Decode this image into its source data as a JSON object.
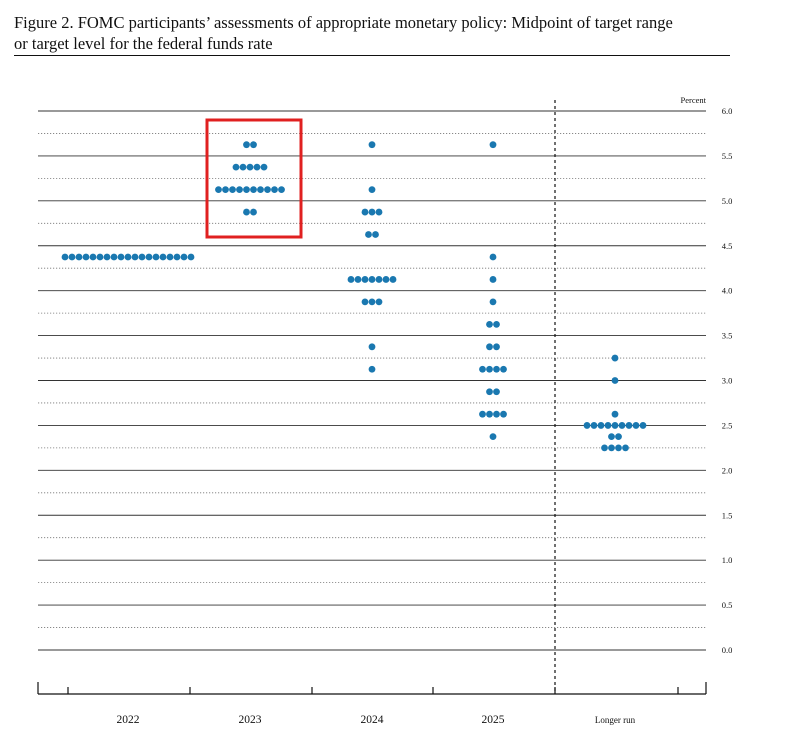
{
  "figure": {
    "title_line1": "Figure 2.  FOMC participants’ assessments of appropriate monetary policy:  Midpoint of target range",
    "title_line2": "or target level for the federal funds rate"
  },
  "chart_data": {
    "type": "scatter",
    "subtype": "dot-plot",
    "title": "Figure 2. FOMC participants’ assessments of appropriate monetary policy: Midpoint of target range or target level for the federal funds rate",
    "ylabel": "Percent",
    "ylim": [
      0.0,
      6.0
    ],
    "y_ticks": [
      "0.0",
      "0.5",
      "1.0",
      "1.5",
      "2.0",
      "2.5",
      "3.0",
      "3.5",
      "4.0",
      "4.5",
      "5.0",
      "5.5",
      "6.0"
    ],
    "y_axis_side": "right",
    "grid": "dotted, every 0.25; solid at whole and half points",
    "categories": [
      "2022",
      "2023",
      "2024",
      "2025",
      "Longer run"
    ],
    "dot_color": "#1a78b0",
    "highlight_color": "#e02020",
    "highlight_category": "2023",
    "columns": [
      {
        "category": "2022",
        "points": [
          {
            "y": 4.375,
            "count": 19
          }
        ]
      },
      {
        "category": "2023",
        "points": [
          {
            "y": 5.625,
            "count": 2
          },
          {
            "y": 5.375,
            "count": 5
          },
          {
            "y": 5.125,
            "count": 10
          },
          {
            "y": 4.875,
            "count": 2
          }
        ]
      },
      {
        "category": "2024",
        "points": [
          {
            "y": 5.625,
            "count": 1
          },
          {
            "y": 5.125,
            "count": 1
          },
          {
            "y": 4.875,
            "count": 3
          },
          {
            "y": 4.625,
            "count": 2
          },
          {
            "y": 4.125,
            "count": 7
          },
          {
            "y": 3.875,
            "count": 3
          },
          {
            "y": 3.375,
            "count": 1
          },
          {
            "y": 3.125,
            "count": 1
          }
        ]
      },
      {
        "category": "2025",
        "points": [
          {
            "y": 5.625,
            "count": 1
          },
          {
            "y": 4.375,
            "count": 1
          },
          {
            "y": 4.125,
            "count": 1
          },
          {
            "y": 3.875,
            "count": 1
          },
          {
            "y": 3.625,
            "count": 2
          },
          {
            "y": 3.375,
            "count": 2
          },
          {
            "y": 3.125,
            "count": 4
          },
          {
            "y": 2.875,
            "count": 2
          },
          {
            "y": 2.625,
            "count": 4
          },
          {
            "y": 2.375,
            "count": 1
          }
        ]
      },
      {
        "category": "Longer run",
        "points": [
          {
            "y": 3.25,
            "count": 1
          },
          {
            "y": 3.0,
            "count": 1
          },
          {
            "y": 2.625,
            "count": 1
          },
          {
            "y": 2.5,
            "count": 9
          },
          {
            "y": 2.375,
            "count": 2
          },
          {
            "y": 2.25,
            "count": 4
          }
        ]
      }
    ]
  }
}
